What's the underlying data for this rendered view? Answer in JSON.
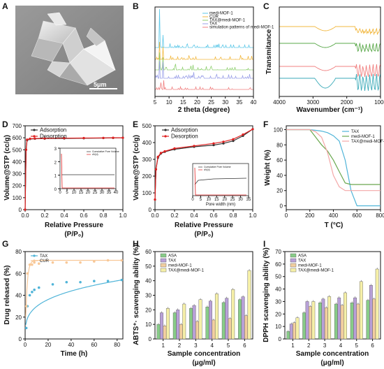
{
  "panels": {
    "A": {
      "label": "A",
      "scale_bar": "5μm"
    },
    "B": {
      "label": "B",
      "xlabel": "2 theta (degree)",
      "xticks": [
        "5",
        "10",
        "15",
        "20",
        "25",
        "30",
        "35",
        "40"
      ],
      "legend": [
        "medi-MOF-1",
        "CUR",
        "TAX@medi-MOF-1",
        "TAX",
        "simulation patterns of medi-MOF-1"
      ]
    },
    "C": {
      "label": "C",
      "ylabel": "Transmitance",
      "xlabel": "Wavenumber (cm⁻¹)",
      "xticks": [
        "4000",
        "3000",
        "2000",
        "1000"
      ]
    },
    "D": {
      "label": "D",
      "ylabel": "Volume@STP (cc/g)",
      "xlabel": "Relative Pressure",
      "xlabel2": "(P/P₀)",
      "yticks": [
        "0",
        "100",
        "200",
        "300",
        "400",
        "500",
        "600",
        "700"
      ],
      "xticks": [
        "0.0",
        "0.2",
        "0.4",
        "0.6",
        "0.8",
        "1.0"
      ],
      "legend": [
        "Adsorption",
        "Desorption"
      ],
      "inset": {
        "legend": [
          "Cumulative Pore Volume",
          "dV(d)"
        ],
        "yticks": [
          "0",
          "1",
          "2",
          "3"
        ],
        "xticks": [
          "0",
          "5",
          "10",
          "15",
          "20",
          "25",
          "30",
          "35",
          "40"
        ]
      }
    },
    "E": {
      "label": "E",
      "ylabel": "Volume@STP (cc/g)",
      "xlabel": "Relative Pressure",
      "xlabel2": "(P/P₀)",
      "yticks": [
        "0",
        "100",
        "200",
        "300",
        "400",
        "500"
      ],
      "xticks": [
        "0.0",
        "0.2",
        "0.4",
        "0.6",
        "0.8",
        "1.0"
      ],
      "legend": [
        "Adsorption",
        "Desorption"
      ],
      "inset": {
        "legend": [
          "Cumulative Pore Volume",
          "dV(d)"
        ],
        "xlabel": "Pore width (nm)",
        "xticks": [
          "0",
          "5",
          "10",
          "15",
          "20",
          "25",
          "30",
          "35"
        ]
      }
    },
    "F": {
      "label": "F",
      "ylabel": "Weight (%)",
      "xlabel": "T (°C)",
      "yticks": [
        "0",
        "20",
        "40",
        "60",
        "80",
        "100"
      ],
      "xticks": [
        "0",
        "200",
        "400",
        "600",
        "800"
      ],
      "legend": [
        "TAX",
        "medi-MOF-1",
        "TAX@medi-MOF-1"
      ]
    },
    "G": {
      "label": "G",
      "ylabel": "Drug released (%)",
      "xlabel": "Time (h)",
      "yticks": [
        "0",
        "20",
        "40",
        "60",
        "80"
      ],
      "xticks": [
        "0",
        "20",
        "40",
        "60",
        "80"
      ],
      "legend": [
        "TAX",
        "CUR"
      ]
    },
    "H": {
      "label": "H",
      "ylabel": "ABTS⁺· scavenging ability (%)",
      "xlabel": "Sample concentration",
      "xlabel2": "(μg/ml)",
      "yticks": [
        "0",
        "10",
        "20",
        "30",
        "40",
        "50",
        "60"
      ],
      "legend": [
        "ASA",
        "TAX",
        "medi-MOF-1",
        "TAX@medi-MOF-1"
      ]
    },
    "I": {
      "label": "I",
      "ylabel": "DPPH scavenging ability (%)",
      "xlabel": "Sample concentration",
      "xlabel2": "(μg/ml)",
      "yticks": [
        "0",
        "10",
        "20",
        "30",
        "40",
        "50",
        "60",
        "70"
      ],
      "legend": [
        "ASA",
        "TAX",
        "medi-MOF-1",
        "TAX@medi-MOF-1"
      ]
    }
  },
  "colors": {
    "green": "#88cc88",
    "purple": "#b8a0d8",
    "orange": "#f2cfa0",
    "yellow": "#f6f0a8",
    "adsorp": "#333333",
    "desorp": "#e02020",
    "tax": "#4fb4d8",
    "mof": "#6aa84f",
    "taxmof": "#f4a8a8",
    "cur": "#f8c898"
  },
  "chart_data": [
    {
      "panel": "D",
      "type": "line",
      "x": [
        0,
        0.01,
        0.02,
        0.05,
        0.1,
        0.2,
        0.4,
        0.6,
        0.8,
        0.9,
        1.0
      ],
      "series": [
        {
          "name": "Adsorption",
          "values": [
            0,
            500,
            580,
            590,
            592,
            593,
            594,
            596,
            598,
            599,
            600
          ]
        },
        {
          "name": "Desorption",
          "values": [
            0,
            500,
            585,
            592,
            594,
            595,
            597,
            598,
            599,
            600,
            600
          ]
        }
      ],
      "ylim": [
        0,
        700
      ],
      "xlim": [
        0,
        1
      ]
    },
    {
      "panel": "E",
      "type": "line",
      "x": [
        0,
        0.01,
        0.03,
        0.06,
        0.1,
        0.2,
        0.4,
        0.6,
        0.7,
        0.8,
        0.9,
        1.0
      ],
      "series": [
        {
          "name": "Adsorption",
          "values": [
            60,
            240,
            310,
            335,
            345,
            360,
            375,
            385,
            395,
            410,
            440,
            480
          ]
        },
        {
          "name": "Desorption",
          "values": [
            60,
            240,
            315,
            338,
            348,
            365,
            380,
            395,
            405,
            420,
            448,
            480
          ]
        }
      ],
      "ylim": [
        0,
        500
      ],
      "xlim": [
        0,
        1
      ]
    },
    {
      "panel": "F",
      "type": "line",
      "x": [
        0,
        100,
        200,
        250,
        300,
        350,
        400,
        450,
        500,
        550,
        600,
        800
      ],
      "series": [
        {
          "name": "TAX",
          "values": [
            100,
            100,
            100,
            99,
            98,
            96,
            92,
            85,
            60,
            20,
            0,
            0
          ]
        },
        {
          "name": "medi-MOF-1",
          "values": [
            100,
            100,
            100,
            90,
            80,
            72,
            60,
            45,
            30,
            28,
            28,
            28
          ]
        },
        {
          "name": "TAX@medi-MOF-1",
          "values": [
            100,
            100,
            100,
            97,
            90,
            70,
            40,
            25,
            20,
            20,
            20,
            20
          ]
        }
      ],
      "ylim": [
        -5,
        105
      ],
      "xlim": [
        0,
        800
      ]
    },
    {
      "panel": "G",
      "type": "scatter",
      "series": [
        {
          "name": "TAX",
          "x": [
            1,
            2,
            4,
            6,
            8,
            12,
            24,
            36,
            48,
            60,
            72,
            84
          ],
          "y": [
            10,
            30,
            40,
            43,
            45,
            47,
            50,
            52,
            52,
            53,
            53,
            54
          ]
        },
        {
          "name": "CUR",
          "x": [
            1,
            2,
            4,
            6,
            8,
            12,
            24,
            36,
            48,
            60,
            72,
            84
          ],
          "y": [
            30,
            60,
            68,
            68,
            70,
            69,
            70,
            70,
            70,
            71,
            72,
            72
          ]
        }
      ],
      "ylim": [
        0,
        80
      ],
      "xlim": [
        0,
        85
      ]
    },
    {
      "panel": "H",
      "type": "bar",
      "categories": [
        "1",
        "2",
        "3",
        "4",
        "5",
        "6"
      ],
      "series": [
        {
          "name": "ASA",
          "values": [
            10,
            18,
            21,
            22,
            25,
            27
          ]
        },
        {
          "name": "TAX",
          "values": [
            18,
            20,
            23,
            26,
            28,
            29
          ]
        },
        {
          "name": "medi-MOF-1",
          "values": [
            9,
            10,
            12,
            13,
            14,
            16
          ]
        },
        {
          "name": "TAX@medi-MOF-1",
          "values": [
            21,
            24,
            27,
            31,
            34,
            47
          ]
        }
      ],
      "ylim": [
        0,
        60
      ]
    },
    {
      "panel": "I",
      "type": "bar",
      "categories": [
        "1",
        "2",
        "3",
        "4",
        "5",
        "6"
      ],
      "series": [
        {
          "name": "ASA",
          "values": [
            6,
            21,
            29,
            28,
            29,
            31
          ]
        },
        {
          "name": "TAX",
          "values": [
            12,
            30,
            32,
            33,
            33,
            43
          ]
        },
        {
          "name": "medi-MOF-1",
          "values": [
            13,
            26,
            25,
            27,
            28,
            32
          ]
        },
        {
          "name": "TAX@medi-MOF-1",
          "values": [
            17,
            30,
            34,
            37,
            46,
            56
          ]
        }
      ],
      "ylim": [
        0,
        70
      ]
    }
  ]
}
